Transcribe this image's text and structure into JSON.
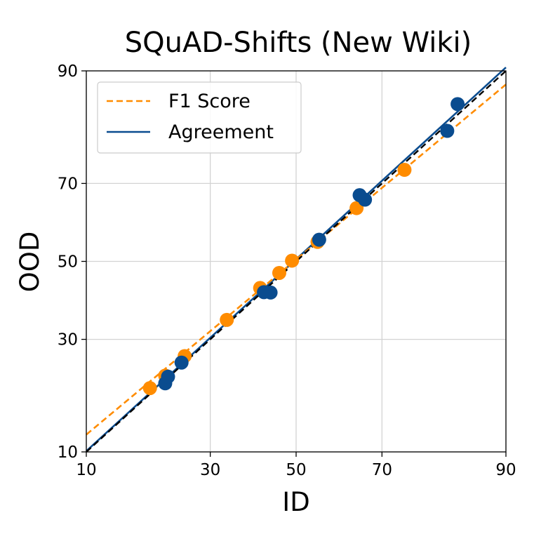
{
  "chart_data": {
    "type": "scatter",
    "title": "SQuAD-Shifts (New Wiki)",
    "xlabel": "ID",
    "ylabel": "OOD",
    "xlim": [
      10,
      90
    ],
    "ylim": [
      10,
      90
    ],
    "axis_scale": "probit",
    "x_ticks": [
      "10",
      "30",
      "50",
      "70",
      "90"
    ],
    "y_ticks": [
      "10",
      "30",
      "50",
      "70",
      "90"
    ],
    "grid": true,
    "legend": {
      "placement": "top-left",
      "entries": [
        "F1 Score",
        "Agreement"
      ]
    },
    "colors": {
      "f1": "#FF8C00",
      "agreement": "#0A4C8F",
      "diagonal": "#000000",
      "grid": "#D3D3D3"
    },
    "series": [
      {
        "name": "F1 Score",
        "style": "dashed-fit",
        "fit_line": [
          [
            10,
            12.2
          ],
          [
            90,
            88.3
          ]
        ],
        "points": [
          [
            18.6,
            19.7
          ],
          [
            21.2,
            22.1
          ],
          [
            24.8,
            26.2
          ],
          [
            33.6,
            34.7
          ],
          [
            41.3,
            42.9
          ],
          [
            45.9,
            46.9
          ],
          [
            49.0,
            50.2
          ],
          [
            55.2,
            55.2
          ],
          [
            64.4,
            64.0
          ],
          [
            74.6,
            73.1
          ]
        ]
      },
      {
        "name": "Agreement",
        "style": "solid-fit",
        "fit_line": [
          [
            10,
            10.1
          ],
          [
            90,
            90.4
          ]
        ],
        "points": [
          [
            21.2,
            20.6
          ],
          [
            21.7,
            21.9
          ],
          [
            24.2,
            24.8
          ],
          [
            42.2,
            41.8
          ],
          [
            43.8,
            41.7
          ],
          [
            55.6,
            55.8
          ],
          [
            65.1,
            67.2
          ],
          [
            66.3,
            66.1
          ],
          [
            82.2,
            81.0
          ],
          [
            83.8,
            85.5
          ]
        ]
      }
    ],
    "reference_line": [
      [
        10,
        10
      ],
      [
        90,
        90
      ]
    ]
  }
}
